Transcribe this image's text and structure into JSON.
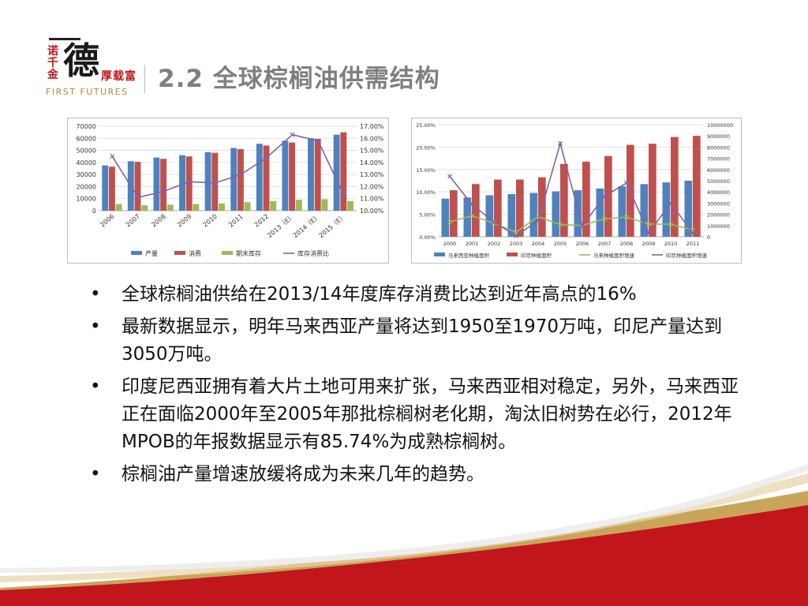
{
  "logo": {
    "vertical_text": "诺千金",
    "big_char": "德",
    "side_text": "厚载富",
    "english": "FIRST FUTURES"
  },
  "title": "2.2 全球棕榈油供需结构",
  "bullets": [
    "全球棕榈油供给在2013/14年度库存消费比达到近年高点的16%",
    "最新数据显示，明年马来西亚产量将达到1950至1970万吨，印尼产量达到3050万吨。",
    "印度尼西亚拥有着大片土地可用来扩张，马来西亚相对稳定，另外，马来西亚正在面临2000年至2005年那批棕榈树老化期，淘汰旧树势在必行，2012年MPOB的年报数据显示有85.74%为成熟棕榈树。",
    "棕榈油产量增速放缓将成为未来几年的趋势。"
  ],
  "bullet_marker": "•",
  "colors": {
    "blue": "#4f81bd",
    "red": "#c0504d",
    "green": "#9bbb59",
    "purple": "#8064a2",
    "title_gray": "#7f7f7f",
    "deco_red": "#c0161c",
    "deco_gold": "#c9a55a"
  },
  "chart_data": [
    {
      "type": "bar",
      "categories": [
        "2006",
        "2007",
        "2008",
        "2009",
        "2010",
        "2011",
        "2012",
        "2013（E）",
        "2014（E）",
        "2015（E）"
      ],
      "series": [
        {
          "name": "产量",
          "axis": "left",
          "values": [
            37500,
            41000,
            44000,
            46000,
            48500,
            52000,
            55500,
            58000,
            60000,
            63000
          ]
        },
        {
          "name": "消费",
          "axis": "left",
          "values": [
            36500,
            40500,
            43000,
            45000,
            48000,
            51000,
            54000,
            56500,
            59500,
            65000
          ]
        },
        {
          "name": "期末库存",
          "axis": "left",
          "values": [
            5500,
            4500,
            5000,
            5500,
            6000,
            7000,
            8000,
            9000,
            9500,
            8000
          ]
        },
        {
          "name": "库存消费比",
          "axis": "right",
          "type": "line",
          "values": [
            14.5,
            11.1,
            11.6,
            12.4,
            12.3,
            13.0,
            14.4,
            16.3,
            15.8,
            11.3
          ]
        }
      ],
      "y_ticks": [
        "70000",
        "60000",
        "50000",
        "40000",
        "30000",
        "20000",
        "10000",
        "0"
      ],
      "ylim": [
        0,
        70000
      ],
      "y2_ticks": [
        "17.00%",
        "16.00%",
        "15.00%",
        "14.00%",
        "13.00%",
        "12.00%",
        "11.00%",
        "10.00%"
      ],
      "y2lim": [
        10,
        17
      ],
      "grid": true,
      "legend": "bottom"
    },
    {
      "type": "bar",
      "categories": [
        "2000",
        "2001",
        "2002",
        "2003",
        "2004",
        "2005",
        "2006",
        "2007",
        "2008",
        "2009",
        "2010",
        "2011"
      ],
      "series": [
        {
          "name": "马来西亚种植面积",
          "axis": "right",
          "values": [
            3400000,
            3500000,
            3700000,
            3800000,
            3900000,
            4050000,
            4150000,
            4300000,
            4500000,
            4700000,
            4850000,
            5000000
          ]
        },
        {
          "name": "印尼种植面积",
          "axis": "right",
          "values": [
            4150000,
            4700000,
            5100000,
            5100000,
            5300000,
            6500000,
            6700000,
            7200000,
            8200000,
            8300000,
            8900000,
            9000000
          ]
        },
        {
          "name": "马来种植面积增速",
          "axis": "left",
          "type": "line",
          "values": [
            3.3,
            4.7,
            3.0,
            1.0,
            4.5,
            2.7,
            2.5,
            4.0,
            4.4,
            2.8,
            2.8,
            1.5
          ]
        },
        {
          "name": "印尼种植面积增速",
          "axis": "left",
          "type": "line",
          "values": [
            13.5,
            7.2,
            3.3,
            0.2,
            3.6,
            20.8,
            2.4,
            9.0,
            12.0,
            0.8,
            7.5,
            0.8
          ]
        }
      ],
      "y_ticks": [
        "25.00%",
        "20.00%",
        "15.00%",
        "10.00%",
        "5.00%",
        "0.00%"
      ],
      "ylim": [
        0,
        25
      ],
      "y2_ticks": [
        "10000000",
        "9000000",
        "8000000",
        "7000000",
        "6000000",
        "5000000",
        "4000000",
        "3000000",
        "2000000",
        "1000000",
        "0"
      ],
      "y2lim": [
        0,
        10000000
      ],
      "grid": true,
      "legend": "bottom"
    }
  ]
}
